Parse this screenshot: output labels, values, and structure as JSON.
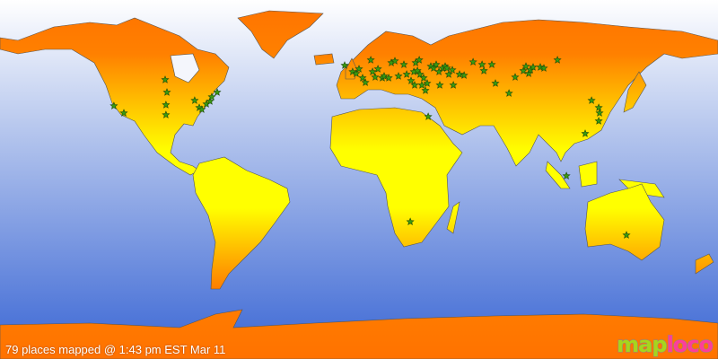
{
  "caption": "79 places mapped @ 1:43 pm EST Mar 11",
  "logo": {
    "part1": "map",
    "part2": "loco"
  },
  "colors": {
    "land_pole": "#ff7700",
    "land_equator": "#ffff00",
    "ocean_top": "#ffffff",
    "ocean_bottom": "#3a66d4",
    "marker": "#3a9a10"
  },
  "marker_icon": "star",
  "projection": "equirectangular",
  "places": [
    [
      -122.9,
      36.9
    ],
    [
      -117.9,
      33.3
    ],
    [
      -97.2,
      50.0
    ],
    [
      -96.8,
      37.4
    ],
    [
      -96.8,
      32.4
    ],
    [
      -82.4,
      39.6
    ],
    [
      -80.1,
      36.0
    ],
    [
      -78.8,
      35.1
    ],
    [
      -76.5,
      37.8
    ],
    [
      -74.7,
      39.2
    ],
    [
      -71.1,
      43.7
    ],
    [
      -73.8,
      41.4
    ],
    [
      -96.3,
      43.7
    ],
    [
      -7.2,
      57.2
    ],
    [
      -3.2,
      54.0
    ],
    [
      -1.4,
      53.1
    ],
    [
      0,
      55.4
    ],
    [
      1.8,
      50.9
    ],
    [
      3.2,
      48.6
    ],
    [
      5.9,
      59.9
    ],
    [
      6.8,
      54.0
    ],
    [
      8.1,
      51.3
    ],
    [
      9.5,
      55.4
    ],
    [
      11.7,
      50.9
    ],
    [
      12.6,
      51.8
    ],
    [
      14.9,
      50.9
    ],
    [
      16.2,
      58.5
    ],
    [
      18.0,
      59.4
    ],
    [
      19.8,
      51.8
    ],
    [
      22.5,
      57.6
    ],
    [
      23.9,
      52.7
    ],
    [
      26.1,
      49.5
    ],
    [
      27.5,
      54.0
    ],
    [
      27.9,
      47.3
    ],
    [
      28.4,
      58.5
    ],
    [
      29.3,
      54.5
    ],
    [
      30.2,
      59.9
    ],
    [
      30.6,
      52.7
    ],
    [
      31.5,
      47.3
    ],
    [
      32.4,
      50.9
    ],
    [
      33.3,
      44.6
    ],
    [
      34.2,
      48.2
    ],
    [
      36.0,
      56.7
    ],
    [
      37.4,
      55.8
    ],
    [
      38.7,
      57.6
    ],
    [
      40.1,
      54.0
    ],
    [
      40.5,
      47.3
    ],
    [
      41.9,
      55.8
    ],
    [
      43.2,
      56.7
    ],
    [
      44.1,
      55.8
    ],
    [
      45.0,
      52.7
    ],
    [
      46.8,
      54.9
    ],
    [
      47.3,
      47.3
    ],
    [
      50.4,
      52.7
    ],
    [
      52.7,
      52.2
    ],
    [
      57.2,
      58.9
    ],
    [
      61.7,
      57.6
    ],
    [
      62.6,
      54.5
    ],
    [
      66.6,
      57.6
    ],
    [
      68.4,
      48.2
    ],
    [
      75.2,
      43.2
    ],
    [
      78.3,
      51.3
    ],
    [
      82.4,
      54.5
    ],
    [
      83.7,
      56.7
    ],
    [
      85.1,
      53.1
    ],
    [
      86.0,
      54.9
    ],
    [
      87.3,
      56.3
    ],
    [
      90.9,
      56.3
    ],
    [
      92.7,
      55.8
    ],
    [
      99.5,
      59.9
    ],
    [
      116.6,
      39.6
    ],
    [
      120.2,
      36.0
    ],
    [
      120.2,
      29.3
    ],
    [
      120.6,
      33.3
    ],
    [
      113.4,
      23.0
    ],
    [
      104.0,
      1.8
    ],
    [
      134.1,
      -27.9
    ],
    [
      34.7,
      31.5
    ],
    [
      25.7,
      -21.2
    ]
  ]
}
